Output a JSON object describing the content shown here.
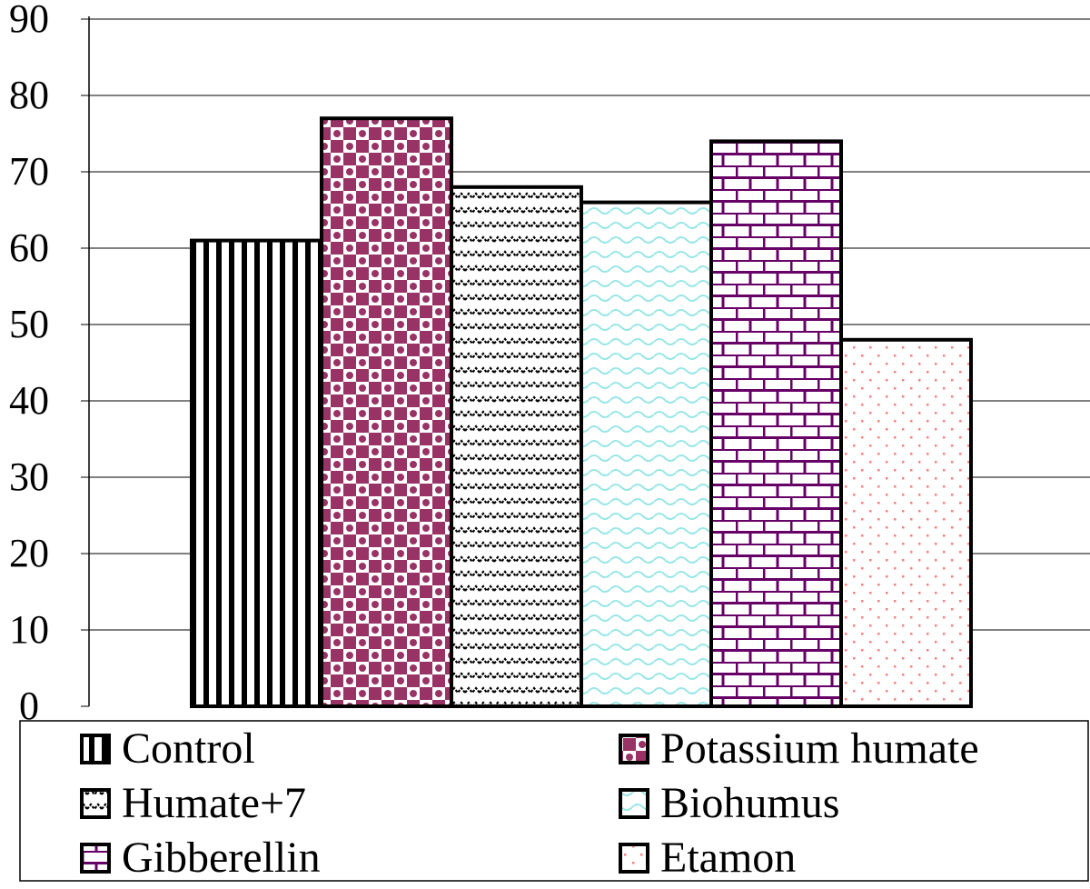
{
  "chart_data": {
    "type": "bar",
    "categories": [
      "Control",
      "Potassium humate",
      "Humate+7",
      "Biohumus",
      "Gibberellin",
      "Etamon"
    ],
    "values": [
      61,
      77,
      68,
      66,
      74,
      48
    ],
    "ylim": [
      0,
      90
    ],
    "yticks": [
      "0",
      "10",
      "20",
      "30",
      "40",
      "50",
      "60",
      "70",
      "80",
      "90"
    ],
    "grid": true,
    "legend_position": "bottom",
    "legend": [
      {
        "label": "Control",
        "pattern": "vertical-stripes",
        "color": "#000000"
      },
      {
        "label": "Potassium humate",
        "pattern": "checker-circles",
        "color": "#993366"
      },
      {
        "label": "Humate+7",
        "pattern": "zigzag",
        "color": "#000000"
      },
      {
        "label": "Biohumus",
        "pattern": "wave",
        "color": "#99e6e6"
      },
      {
        "label": "Gibberellin",
        "pattern": "bricks",
        "color": "#660066"
      },
      {
        "label": "Etamon",
        "pattern": "dots",
        "color": "#ff8080"
      }
    ]
  }
}
